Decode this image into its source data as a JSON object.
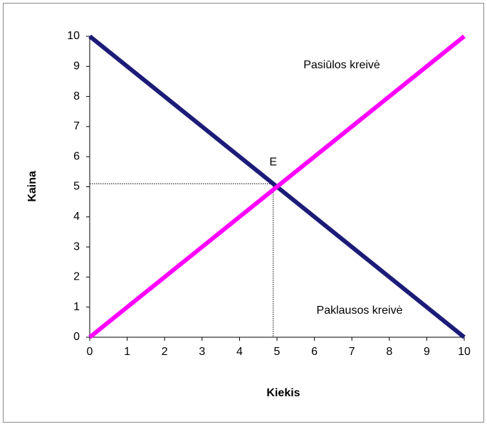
{
  "chart_data": {
    "type": "line",
    "x": [
      0,
      10
    ],
    "series": [
      {
        "name": "Paklausos kreivė",
        "color": "#1c1c78",
        "values": [
          10,
          0
        ]
      },
      {
        "name": "Pasiūlos kreivė",
        "color": "#ff00ff",
        "values": [
          0,
          10
        ]
      }
    ],
    "xlabel": "Kiekis",
    "ylabel": "Kaina",
    "xlim": [
      0,
      10
    ],
    "ylim": [
      0,
      10
    ],
    "xticks": [
      0,
      1,
      2,
      3,
      4,
      5,
      6,
      7,
      8,
      9,
      10
    ],
    "yticks": [
      0,
      1,
      2,
      3,
      4,
      5,
      6,
      7,
      8,
      9,
      10
    ],
    "grid": false,
    "equilibrium": {
      "label": "E",
      "x": 4.9,
      "y": 5.1
    }
  }
}
